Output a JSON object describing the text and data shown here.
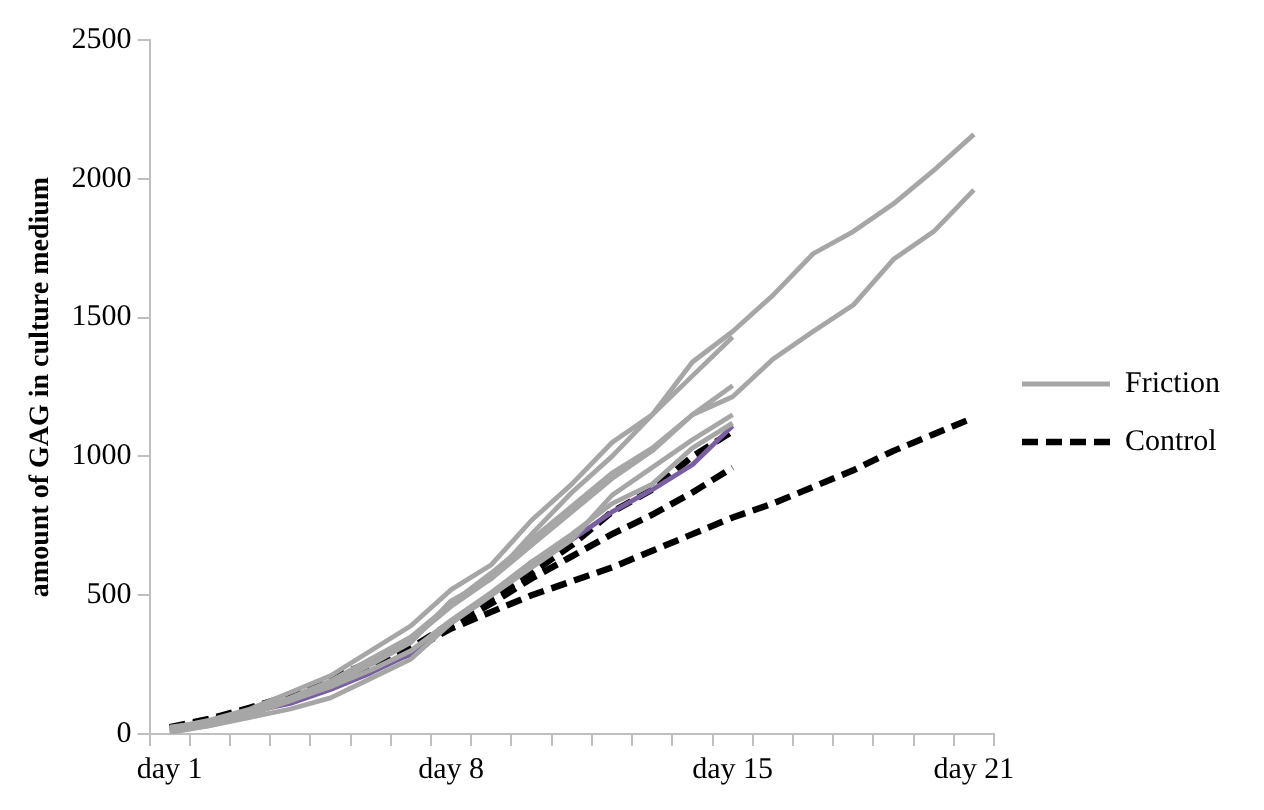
{
  "chart_data": {
    "type": "line",
    "ylabel": "amount of GAG in culture medium",
    "categories": [
      "day 1",
      null,
      null,
      null,
      null,
      null,
      null,
      "day 8",
      null,
      null,
      null,
      null,
      null,
      null,
      "day 15",
      null,
      null,
      null,
      null,
      null,
      "day 21"
    ],
    "ylim": [
      0,
      2500
    ],
    "yticks": [
      0,
      500,
      1000,
      1500,
      2000,
      2500
    ],
    "grid": false,
    "legend": "right",
    "marker": "none",
    "series": [
      {
        "name": "Friction",
        "color": "#a6a6a6",
        "line_style": "solid",
        "values": [
          20,
          50,
          90,
          150,
          210,
          300,
          390,
          520,
          610,
          770,
          900,
          1050,
          1150,
          1340,
          1450,
          1580,
          1730,
          1810,
          1910,
          2030,
          2160
        ]
      },
      {
        "color": "#a6a6a6",
        "line_style": "solid",
        "values": [
          20,
          40,
          80,
          130,
          190,
          270,
          350,
          470,
          580,
          700,
          820,
          940,
          1030,
          1150,
          1215,
          1350,
          1450,
          1545,
          1710,
          1810,
          1960
        ]
      },
      {
        "color": "#a6a6a6",
        "line_style": "solid",
        "values": [
          10,
          30,
          70,
          120,
          180,
          250,
          330,
          480,
          560,
          720,
          870,
          1000,
          1150,
          1290,
          1430,
          null,
          null,
          null,
          null,
          null,
          null
        ]
      },
      {
        "color": "#a6a6a6",
        "line_style": "solid",
        "values": [
          15,
          40,
          80,
          130,
          190,
          270,
          340,
          460,
          560,
          680,
          800,
          920,
          1020,
          1150,
          1255,
          null,
          null,
          null,
          null,
          null,
          null
        ]
      },
      {
        "color": "#a6a6a6",
        "line_style": "solid",
        "values": [
          5,
          30,
          60,
          90,
          130,
          200,
          270,
          400,
          500,
          600,
          700,
          860,
          960,
          1060,
          1150,
          null,
          null,
          null,
          null,
          null,
          null
        ]
      },
      {
        "color": "#a6a6a6",
        "line_style": "solid",
        "values": [
          25,
          45,
          80,
          120,
          170,
          230,
          300,
          410,
          510,
          620,
          720,
          830,
          900,
          1030,
          1120,
          null,
          null,
          null,
          null,
          null,
          null
        ]
      },
      {
        "color": "#7a5fa0",
        "line_style": "solid",
        "values": [
          20,
          45,
          80,
          110,
          160,
          220,
          290,
          400,
          500,
          620,
          700,
          800,
          880,
          970,
          1110,
          null,
          null,
          null,
          null,
          null,
          null
        ]
      },
      {
        "name": "Control",
        "color": "#000000",
        "line_style": "dashed",
        "values": [
          20,
          50,
          90,
          140,
          200,
          260,
          300,
          380,
          440,
          500,
          550,
          600,
          660,
          720,
          780,
          830,
          890,
          950,
          1020,
          1080,
          1140
        ]
      },
      {
        "color": "#000000",
        "line_style": "dashed",
        "values": [
          20,
          50,
          85,
          130,
          190,
          250,
          310,
          400,
          490,
          580,
          680,
          800,
          880,
          1000,
          1090,
          null,
          null,
          null,
          null,
          null,
          null
        ]
      },
      {
        "color": "#000000",
        "line_style": "dashed",
        "values": [
          25,
          55,
          95,
          140,
          190,
          240,
          290,
          390,
          470,
          560,
          640,
          720,
          790,
          870,
          960,
          null,
          null,
          null,
          null,
          null,
          null
        ]
      }
    ]
  }
}
